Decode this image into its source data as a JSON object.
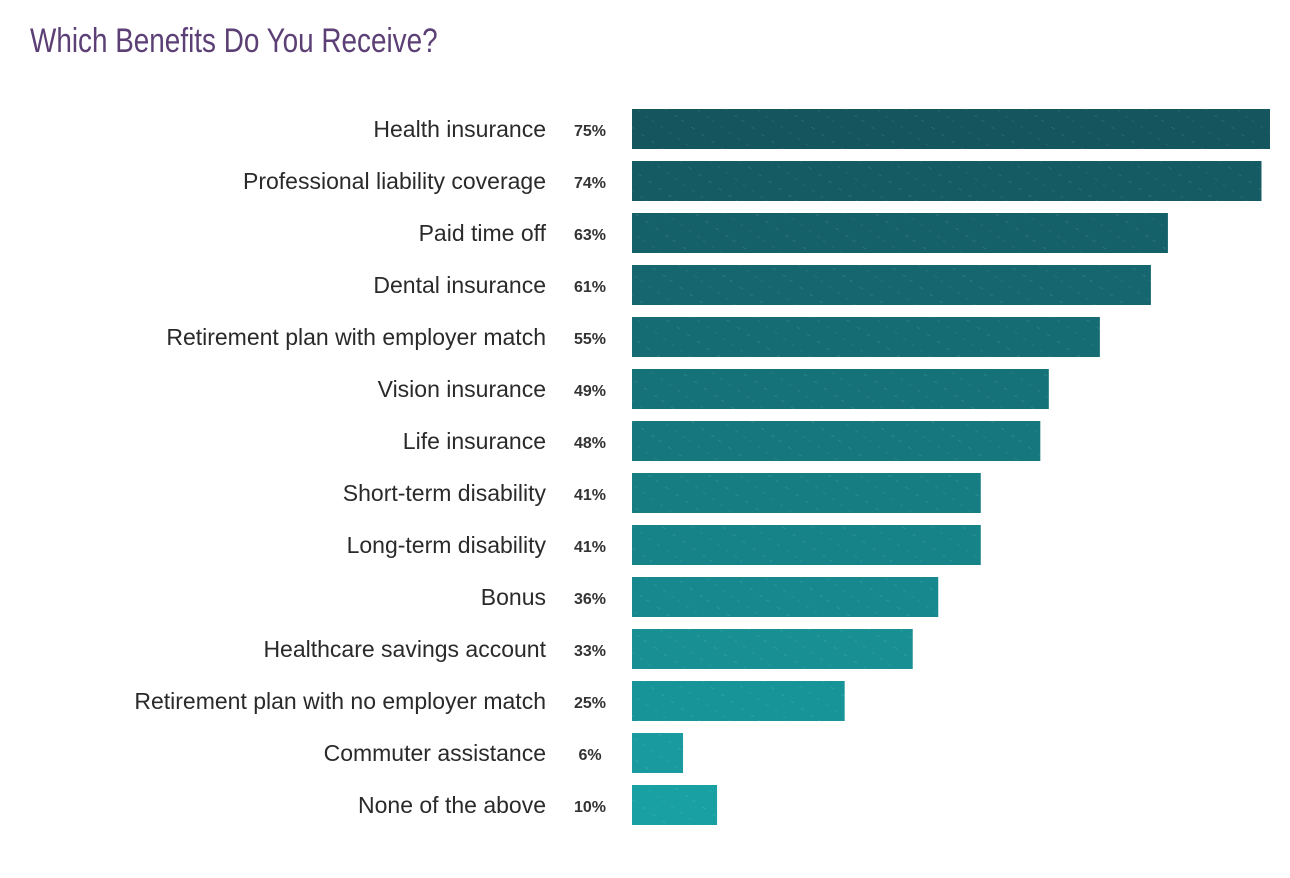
{
  "chart_data": {
    "type": "bar",
    "orientation": "horizontal",
    "title": "Which Benefits Do You Receive?",
    "xlabel": "",
    "ylabel": "",
    "xlim": [
      0,
      75
    ],
    "grid": false,
    "value_suffix": "%",
    "categories": [
      "Health insurance",
      "Professional liability coverage",
      "Paid time off",
      "Dental insurance",
      "Retirement plan with employer match",
      "Vision insurance",
      "Life insurance",
      "Short-term disability",
      "Long-term disability",
      "Bonus",
      "Healthcare savings account",
      "Retirement plan with no employer match",
      "Commuter assistance",
      "None of the above"
    ],
    "values": [
      75,
      74,
      63,
      61,
      55,
      49,
      48,
      41,
      41,
      36,
      33,
      25,
      6,
      10
    ],
    "colors": {
      "top": "#14555e",
      "bottom": "#18a0a3",
      "title": "#5b3f75"
    }
  }
}
